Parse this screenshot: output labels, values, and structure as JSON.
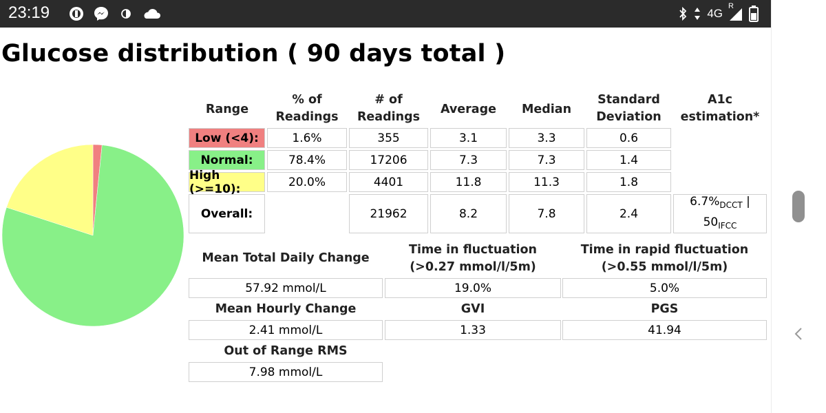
{
  "status_bar": {
    "time": "23:19",
    "network": "4G",
    "roaming": "R",
    "left_icons": [
      "opera-icon",
      "messenger-icon",
      "contrast-icon",
      "cloud-icon"
    ],
    "right_icons": [
      "bluetooth-icon",
      "data-arrows-icon",
      "signal-icon",
      "battery-icon"
    ]
  },
  "page": {
    "title": "Glucose distribution ( 90 days total )"
  },
  "colors": {
    "low": "#f08080",
    "normal": "#88f088",
    "high": "#ffff88"
  },
  "chart_data": {
    "type": "pie",
    "categories": [
      "Low (<4)",
      "Normal",
      "High (>=10)"
    ],
    "values": [
      1.6,
      78.4,
      20.0
    ],
    "colors": [
      "#f08080",
      "#88f088",
      "#ffff88"
    ]
  },
  "range_table": {
    "headers": {
      "range": "Range",
      "pct": [
        "% of",
        "Readings"
      ],
      "count": [
        "# of",
        "Readings"
      ],
      "average": "Average",
      "median": "Median",
      "sd": [
        "Standard",
        "Deviation"
      ],
      "a1c": [
        "A1c",
        "estimation*"
      ]
    },
    "rows": [
      {
        "label": "Low (<4):",
        "pct": "1.6%",
        "count": "355",
        "average": "3.1",
        "median": "3.3",
        "sd": "0.6"
      },
      {
        "label": "Normal:",
        "pct": "78.4%",
        "count": "17206",
        "average": "7.3",
        "median": "7.3",
        "sd": "1.4"
      },
      {
        "label": "High (>=10):",
        "pct": "20.0%",
        "count": "4401",
        "average": "11.8",
        "median": "11.3",
        "sd": "1.8"
      }
    ],
    "overall": {
      "label": "Overall:",
      "count": "21962",
      "average": "8.2",
      "median": "7.8",
      "sd": "2.4",
      "a1c_dcct": "6.7%",
      "a1c_dcct_sub": "DCCT",
      "a1c_sep": " |",
      "a1c_ifcc": "50",
      "a1c_ifcc_sub": "IFCC"
    }
  },
  "stats": {
    "mean_total_daily_change": {
      "label": "Mean Total Daily Change",
      "value": "57.92 mmol/L"
    },
    "time_in_fluctuation": {
      "label": [
        "Time in fluctuation",
        "(>0.27 mmol/l/5m)"
      ],
      "value": "19.0%"
    },
    "time_in_rapid_fluctuation": {
      "label": [
        "Time in rapid fluctuation",
        "(>0.55 mmol/l/5m)"
      ],
      "value": "5.0%"
    },
    "mean_hourly_change": {
      "label": "Mean Hourly Change",
      "value": "2.41 mmol/L"
    },
    "gvi": {
      "label": "GVI",
      "value": "1.33"
    },
    "pgs": {
      "label": "PGS",
      "value": "41.94"
    },
    "out_of_range_rms": {
      "label": "Out of Range RMS",
      "value": "7.98 mmol/L"
    }
  }
}
